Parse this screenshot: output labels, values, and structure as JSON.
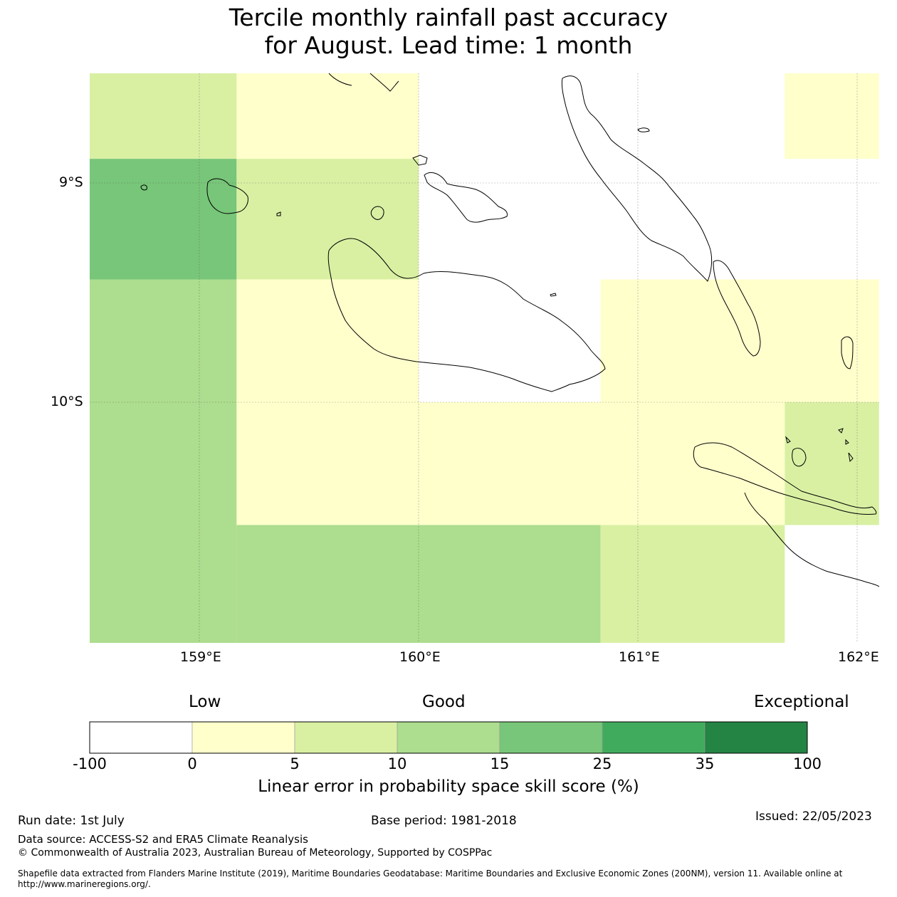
{
  "title": {
    "line1": "Tercile monthly rainfall past accuracy",
    "line2": "for August. Lead time: 1 month"
  },
  "map": {
    "lat_ticks": [
      "9°S",
      "10°S"
    ],
    "lon_ticks": [
      "159°E",
      "160°E",
      "161°E",
      "162°E"
    ],
    "grid_cells": [
      {
        "lon": [
          158.5,
          159.17
        ],
        "lat": [
          -8.5,
          -8.89
        ],
        "category": "5-10"
      },
      {
        "lon": [
          159.17,
          160.0
        ],
        "lat": [
          -8.5,
          -8.89
        ],
        "category": "0-5"
      },
      {
        "lon": [
          161.67,
          162.1
        ],
        "lat": [
          -8.5,
          -8.89
        ],
        "category": "0-5"
      },
      {
        "lon": [
          158.5,
          159.17
        ],
        "lat": [
          -8.89,
          -9.44
        ],
        "category": "15-25"
      },
      {
        "lon": [
          159.17,
          160.0
        ],
        "lat": [
          -8.89,
          -9.44
        ],
        "category": "5-10"
      },
      {
        "lon": [
          158.5,
          159.17
        ],
        "lat": [
          -9.44,
          -11.1
        ],
        "category": "10-15"
      },
      {
        "lon": [
          159.17,
          160.0
        ],
        "lat": [
          -9.44,
          -10.0
        ],
        "category": "0-5"
      },
      {
        "lon": [
          160.83,
          162.1
        ],
        "lat": [
          -9.44,
          -10.0
        ],
        "category": "0-5"
      },
      {
        "lon": [
          159.17,
          161.67
        ],
        "lat": [
          -10.0,
          -10.56
        ],
        "category": "0-5"
      },
      {
        "lon": [
          161.67,
          162.1
        ],
        "lat": [
          -10.0,
          -10.56
        ],
        "category": "5-10"
      },
      {
        "lon": [
          159.17,
          160.83
        ],
        "lat": [
          -10.56,
          -11.1
        ],
        "category": "10-15"
      },
      {
        "lon": [
          160.83,
          161.67
        ],
        "lat": [
          -10.56,
          -11.1
        ],
        "category": "5-10"
      }
    ]
  },
  "colorbar": {
    "quality_labels": [
      "Low",
      "Good",
      "Exceptional"
    ],
    "ticks": [
      "-100",
      "0",
      "5",
      "10",
      "15",
      "25",
      "35",
      "100"
    ],
    "bins": [
      {
        "range": "-100-0",
        "color": "#ffffff"
      },
      {
        "range": "0-5",
        "color": "#ffffcc"
      },
      {
        "range": "5-10",
        "color": "#d9f0a3"
      },
      {
        "range": "10-15",
        "color": "#addd8e"
      },
      {
        "range": "15-25",
        "color": "#78c679"
      },
      {
        "range": "25-35",
        "color": "#41ab5d"
      },
      {
        "range": "35-100",
        "color": "#238443"
      }
    ],
    "label": "Linear error in probability space skill score (%)"
  },
  "footer": {
    "run_date": "Run date: 1st July",
    "base_period": "Base period: 1981-2018",
    "issued": "Issued: 22/05/2023",
    "data_source": "Data source: ACCESS-S2 and ERA5 Climate Reanalysis",
    "copyright": "© Commonwealth of Australia 2023, Australian Bureau of Meteorology, Supported by COSPPac",
    "shapefile": "Shapefile data extracted from Flanders Marine Institute (2019), Maritime Boundaries Geodatabase: Maritime Boundaries and Exclusive Economic Zones (200NM), version 11. Available online at http://www.marineregions.org/."
  }
}
